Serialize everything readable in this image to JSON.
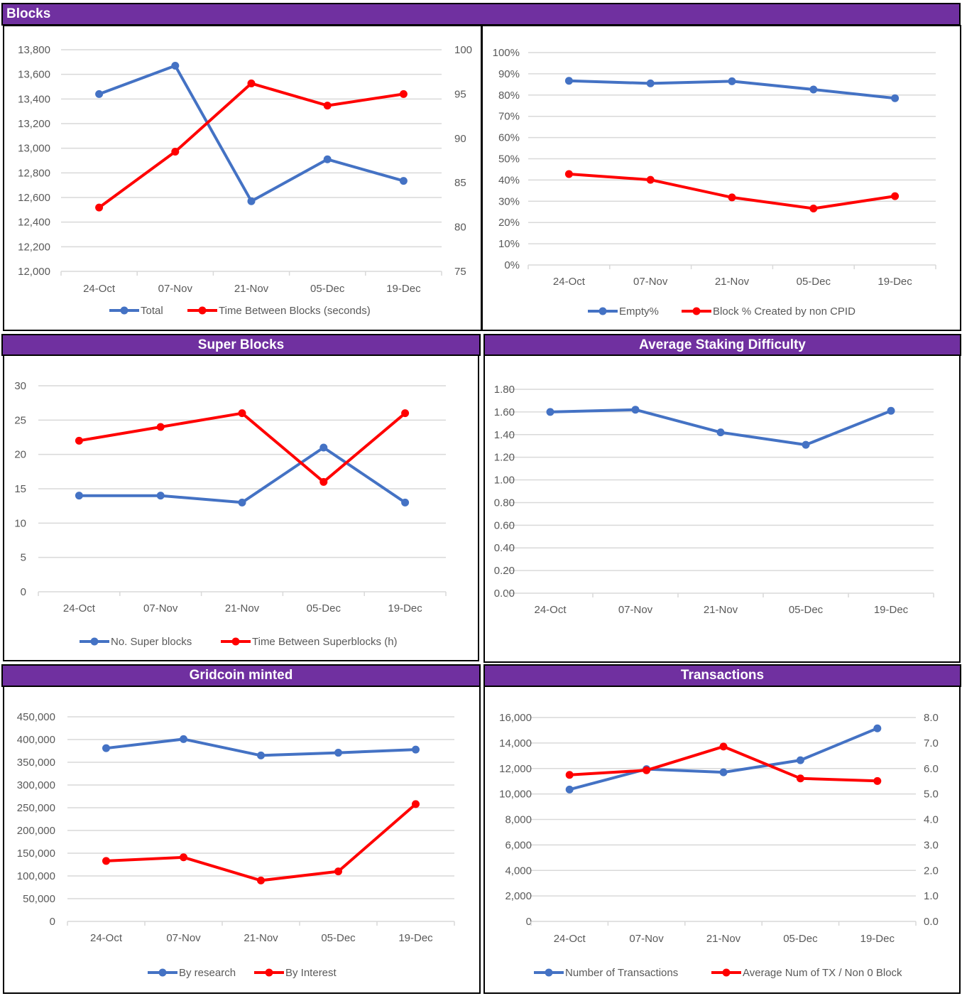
{
  "colors": {
    "banner": "#7030a0",
    "blue": "#4472c4",
    "red": "#ff0000",
    "grid": "#d9d9d9",
    "text": "#595959"
  },
  "sections": {
    "blocks": "Blocks",
    "super_blocks": "Super Blocks",
    "staking": "Average Staking Difficulty",
    "minted": "Gridcoin minted",
    "transactions": "Transactions"
  },
  "chart_data": [
    {
      "id": "blocks-total",
      "type": "line",
      "title": "Blocks",
      "categories": [
        "24-Oct",
        "07-Nov",
        "21-Nov",
        "05-Dec",
        "19-Dec"
      ],
      "series": [
        {
          "name": "Total",
          "axis": "left",
          "color": "#4472c4",
          "values": [
            13440,
            13670,
            12570,
            12910,
            12735
          ]
        },
        {
          "name": "Time Between Blocks (seconds)",
          "axis": "right",
          "color": "#ff0000",
          "values": [
            82.2,
            88.5,
            96.2,
            93.7,
            95.0
          ]
        }
      ],
      "yleft": {
        "min": 12000,
        "max": 13800,
        "step": 200,
        "ticks": [
          "12,000",
          "12,200",
          "12,400",
          "12,600",
          "12,800",
          "13,000",
          "13,200",
          "13,400",
          "13,600",
          "13,800"
        ]
      },
      "yright": {
        "min": 75,
        "max": 100,
        "step": 5,
        "ticks": [
          "75",
          "80",
          "85",
          "90",
          "95",
          "100"
        ]
      },
      "legend": "bottom",
      "grid": true
    },
    {
      "id": "blocks-percent",
      "type": "line",
      "title": "",
      "categories": [
        "24-Oct",
        "07-Nov",
        "21-Nov",
        "05-Dec",
        "19-Dec"
      ],
      "series": [
        {
          "name": "Empty%",
          "axis": "left",
          "color": "#4472c4",
          "values": [
            0.867,
            0.855,
            0.865,
            0.826,
            0.785
          ]
        },
        {
          "name": "Block % Created by non CPID",
          "axis": "left",
          "color": "#ff0000",
          "values": [
            0.428,
            0.401,
            0.318,
            0.266,
            0.324
          ]
        }
      ],
      "yleft": {
        "min": 0,
        "max": 1,
        "step": 0.1,
        "ticks": [
          "0%",
          "10%",
          "20%",
          "30%",
          "40%",
          "50%",
          "60%",
          "70%",
          "80%",
          "90%",
          "100%"
        ]
      },
      "legend": "bottom",
      "grid": true
    },
    {
      "id": "super-blocks",
      "type": "line",
      "title": "Super Blocks",
      "categories": [
        "24-Oct",
        "07-Nov",
        "21-Nov",
        "05-Dec",
        "19-Dec"
      ],
      "series": [
        {
          "name": "No. Super blocks",
          "axis": "left",
          "color": "#4472c4",
          "values": [
            14,
            14,
            13,
            21,
            13
          ]
        },
        {
          "name": "Time Between Superblocks (h)",
          "axis": "left",
          "color": "#ff0000",
          "values": [
            22,
            24,
            26,
            16,
            26
          ]
        }
      ],
      "yleft": {
        "min": 0,
        "max": 30,
        "step": 5,
        "ticks": [
          "0",
          "5",
          "10",
          "15",
          "20",
          "25",
          "30"
        ]
      },
      "legend": "bottom",
      "grid": true
    },
    {
      "id": "staking-difficulty",
      "type": "line",
      "title": "Average Staking Difficulty",
      "categories": [
        "24-Oct",
        "07-Nov",
        "21-Nov",
        "05-Dec",
        "19-Dec"
      ],
      "series": [
        {
          "name": "Average Staking Difficulty",
          "axis": "left",
          "color": "#4472c4",
          "values": [
            1.6,
            1.62,
            1.42,
            1.31,
            1.61
          ]
        }
      ],
      "yleft": {
        "min": 0,
        "max": 1.8,
        "step": 0.2,
        "ticks": [
          "0.00",
          "0.20",
          "0.40",
          "0.60",
          "0.80",
          "1.00",
          "1.20",
          "1.40",
          "1.60",
          "1.80"
        ]
      },
      "legend": "none",
      "grid": true
    },
    {
      "id": "gridcoin-minted",
      "type": "line",
      "title": "Gridcoin minted",
      "categories": [
        "24-Oct",
        "07-Nov",
        "21-Nov",
        "05-Dec",
        "19-Dec"
      ],
      "series": [
        {
          "name": "By research",
          "axis": "left",
          "color": "#4472c4",
          "values": [
            381000,
            401000,
            365000,
            371000,
            378000
          ]
        },
        {
          "name": "By Interest",
          "axis": "left",
          "color": "#ff0000",
          "values": [
            133000,
            141000,
            90000,
            110000,
            258000
          ]
        }
      ],
      "yleft": {
        "min": 0,
        "max": 450000,
        "step": 50000,
        "ticks": [
          "0",
          "50,000",
          "100,000",
          "150,000",
          "200,000",
          "250,000",
          "300,000",
          "350,000",
          "400,000",
          "450,000"
        ]
      },
      "legend": "bottom",
      "grid": true
    },
    {
      "id": "transactions",
      "type": "line",
      "title": "Transactions",
      "categories": [
        "24-Oct",
        "07-Nov",
        "21-Nov",
        "05-Dec",
        "19-Dec"
      ],
      "series": [
        {
          "name": "Number of Transactions",
          "axis": "left",
          "color": "#4472c4",
          "values": [
            10350,
            11950,
            11700,
            12650,
            15150
          ]
        },
        {
          "name": "Average Num of TX / Non 0 Block",
          "axis": "right",
          "color": "#ff0000",
          "values": [
            5.75,
            5.93,
            6.86,
            5.61,
            5.51
          ]
        }
      ],
      "yleft": {
        "min": 0,
        "max": 16000,
        "step": 2000,
        "ticks": [
          "0",
          "2,000",
          "4,000",
          "6,000",
          "8,000",
          "10,000",
          "12,000",
          "14,000",
          "16,000"
        ]
      },
      "yright": {
        "min": 0,
        "max": 8,
        "step": 1,
        "ticks": [
          "0.0",
          "1.0",
          "2.0",
          "3.0",
          "4.0",
          "5.0",
          "6.0",
          "7.0",
          "8.0"
        ]
      },
      "legend": "bottom",
      "grid": true
    }
  ]
}
